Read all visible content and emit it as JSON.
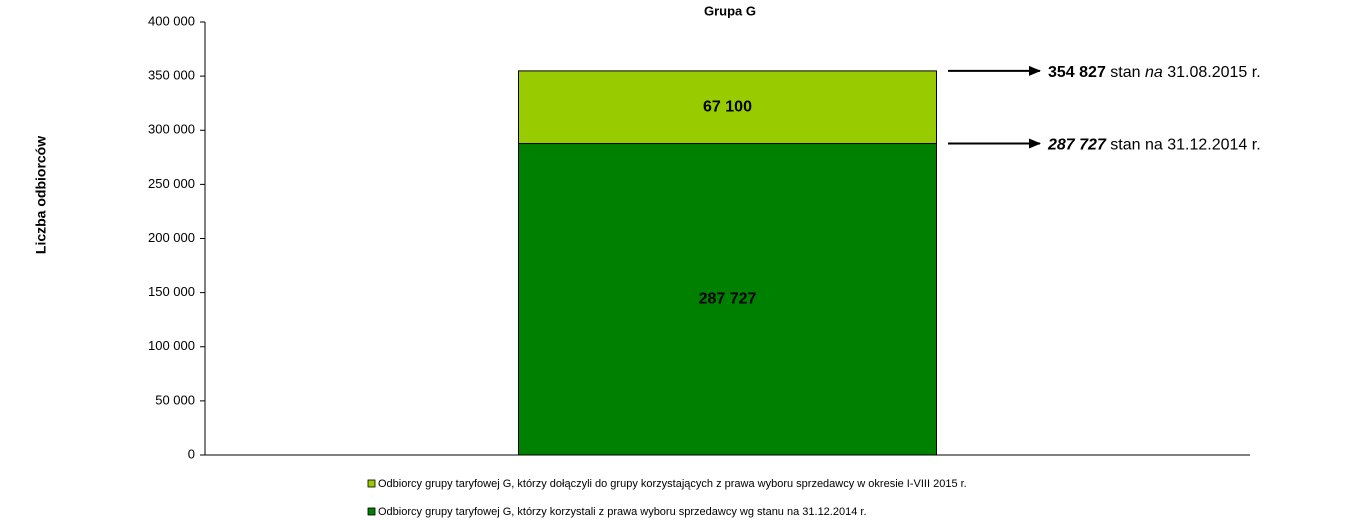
{
  "chart_data": {
    "type": "stacked-bar",
    "title": "Grupa G",
    "y_label": "Liczba odbiorców",
    "categories": [
      null
    ],
    "series": [
      {
        "name": "Odbiorcy grupy taryfowej G, którzy korzystali z prawa wyboru sprzedawcy wg stanu na 31.12.2014 r.",
        "color": "#008000",
        "values": [
          287727
        ],
        "value_labels": [
          "287 727"
        ]
      },
      {
        "name": "Odbiorcy grupy taryfowej G, którzy dołączyli do grupy korzystających z  prawa wyboru sprzedawcy w okresie I-VIII 2015 r.",
        "color": "#99cc00",
        "values": [
          67100
        ],
        "value_labels": [
          "67 100"
        ]
      }
    ],
    "ylim": [
      0,
      400000
    ],
    "yticks": [
      0,
      {
        "value": 50000,
        "label": "50 000"
      },
      {
        "value": 100000,
        "label": "100 000"
      },
      {
        "value": 150000,
        "label": "150 000"
      },
      {
        "value": 200000,
        "label": "200 000"
      },
      {
        "value": 250000,
        "label": "250 000"
      },
      {
        "value": 300000,
        "label": "300 000"
      },
      {
        "value": 350000,
        "label": "350 000"
      },
      {
        "value": 400000,
        "label": "400 000"
      }
    ],
    "annotations": [
      {
        "value": 354827,
        "label": "354 827",
        "text": [
          " stan ",
          "na",
          " 31.08.2015 r."
        ]
      },
      {
        "value": 287727,
        "label": "287 727",
        "text": [
          " stan na 31.12.2014 r."
        ]
      }
    ]
  }
}
